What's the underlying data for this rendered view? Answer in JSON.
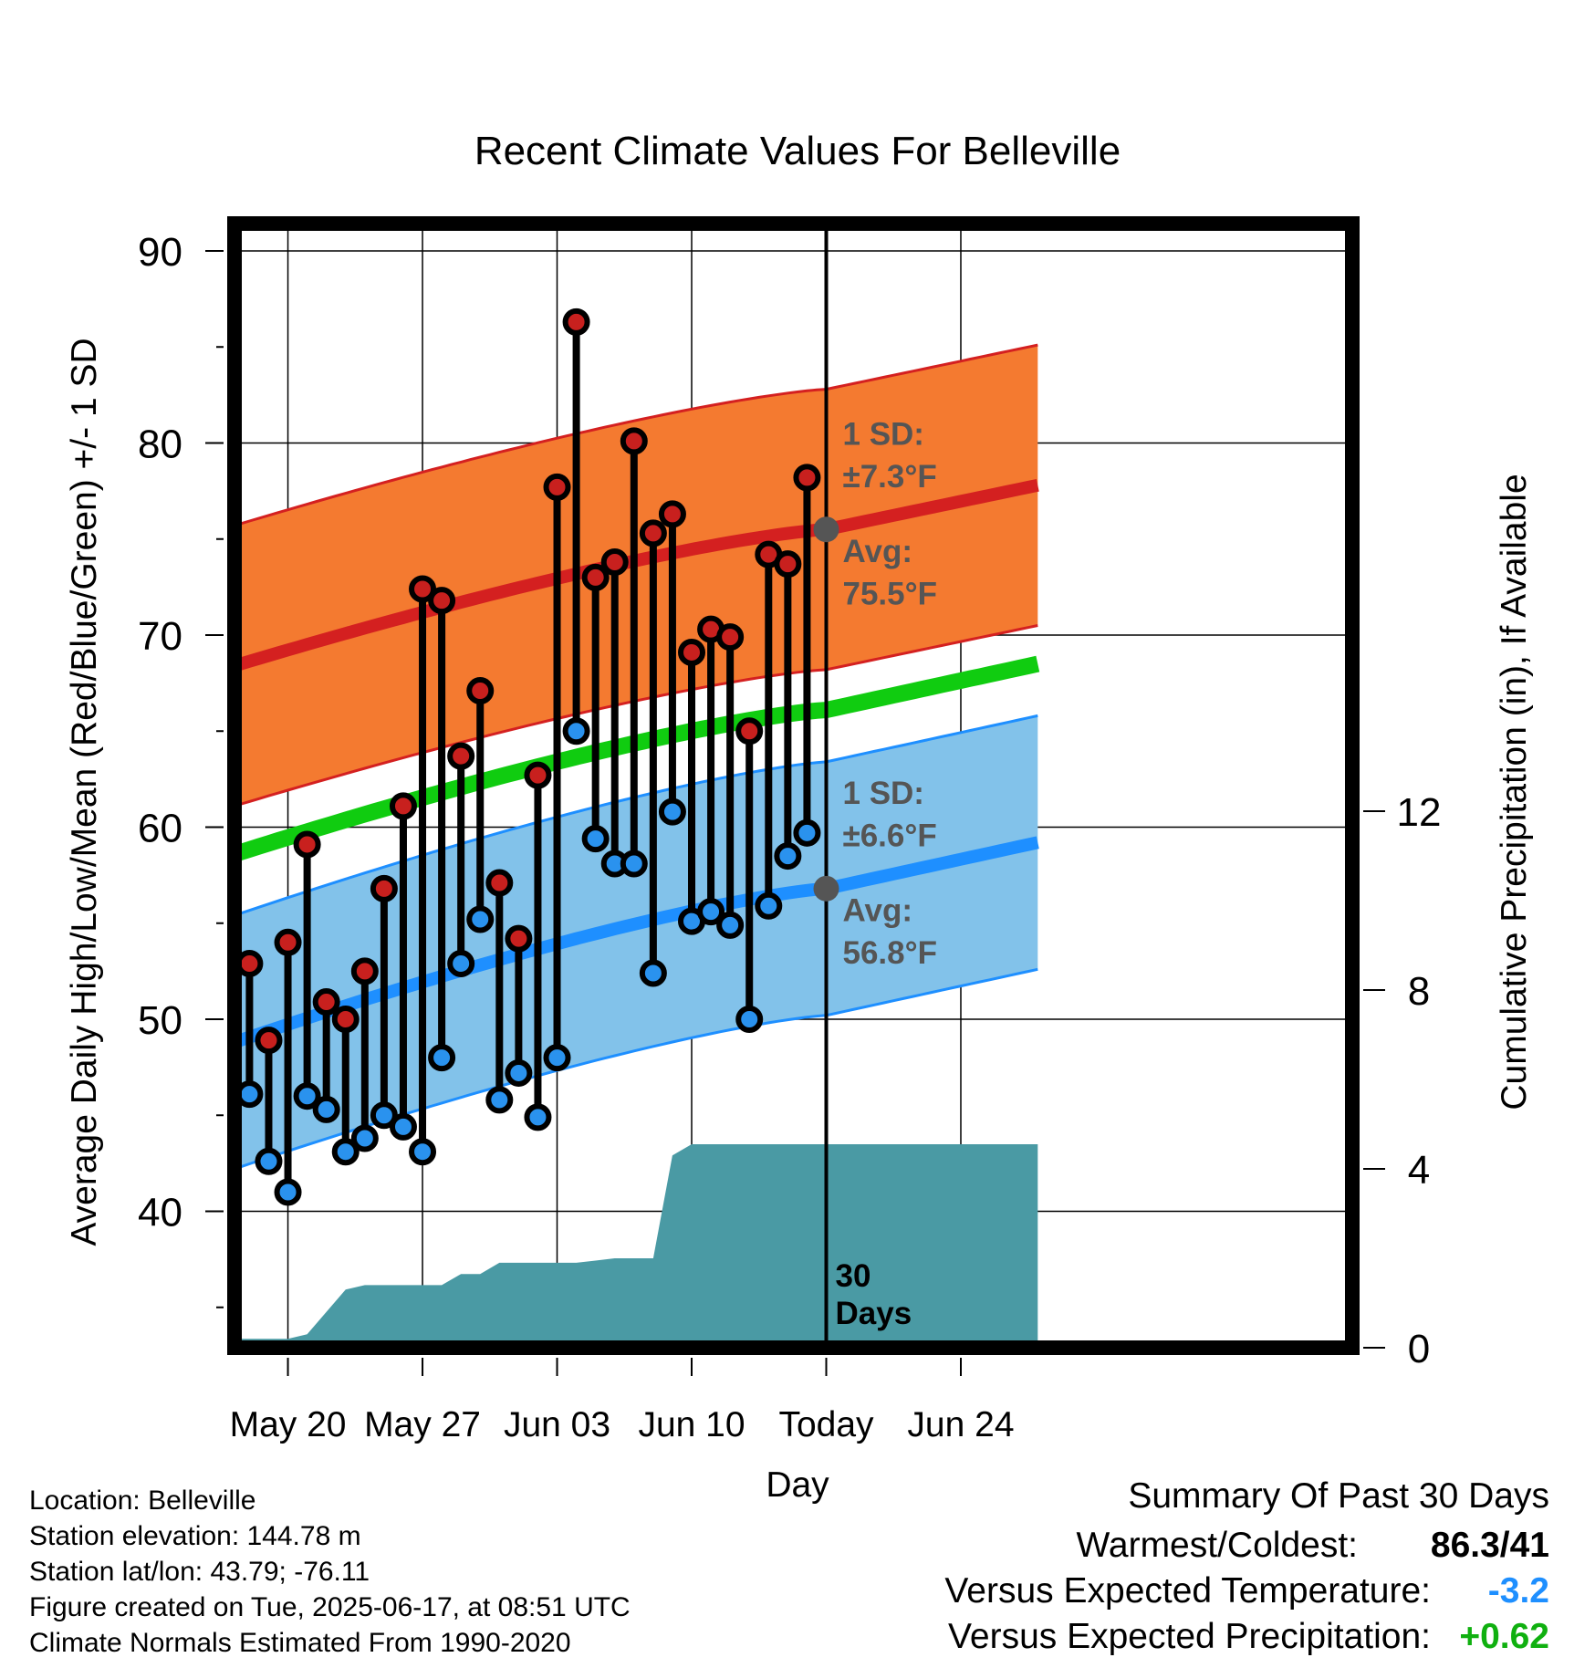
{
  "chart_data": {
    "type": "line",
    "title": "Recent Climate Values For Belleville",
    "xlabel": "Day",
    "ylabel": "Average Daily High/Low/Mean (Red/Blue/Green) +/- 1 SD",
    "y2label": "Cumulative Precipitation (in), If Available",
    "ylim": [
      33,
      91.5
    ],
    "y2lim": [
      0,
      20
    ],
    "yticks": [
      40,
      50,
      60,
      70,
      80,
      90
    ],
    "y2ticks": [
      0,
      4,
      8,
      12
    ],
    "xrange_days": [
      -36,
      11
    ],
    "xticks": [
      {
        "day": -28,
        "label": "May 20"
      },
      {
        "day": -21,
        "label": "May 27"
      },
      {
        "day": -14,
        "label": "Jun 03"
      },
      {
        "day": -7,
        "label": "Jun 10"
      },
      {
        "day": 0,
        "label": "Today"
      },
      {
        "day": 7,
        "label": "Jun 24"
      }
    ],
    "normals": {
      "high_avg": {
        "start": 66.8,
        "today": 75.5,
        "end": 77.8
      },
      "high_sd": 7.3,
      "mean_avg": {
        "start": 56.9,
        "today": 66.1,
        "end": 68.5
      },
      "low_avg": {
        "start": 47.0,
        "today": 56.8,
        "end": 59.2
      },
      "low_sd": 6.6
    },
    "annotations": {
      "high_sd_label": "1 SD:",
      "high_sd_value": "±7.3°F",
      "high_avg_label": "Avg:",
      "high_avg_value": "75.5°F",
      "low_sd_label": "1 SD:",
      "low_sd_value": "±6.6°F",
      "low_avg_label": "Avg:",
      "low_avg_value": "56.8°F",
      "days_line1": "30",
      "days_line2": "Days"
    },
    "daily": [
      {
        "day": -30,
        "high": 52.9,
        "low": 46.1
      },
      {
        "day": -29,
        "high": 48.9,
        "low": 42.6
      },
      {
        "day": -28,
        "high": 54.0,
        "low": 41.0
      },
      {
        "day": -27,
        "high": 59.1,
        "low": 46.0
      },
      {
        "day": -26,
        "high": 50.9,
        "low": 45.3
      },
      {
        "day": -25,
        "high": 50.0,
        "low": 43.1
      },
      {
        "day": -24,
        "high": 52.5,
        "low": 43.8
      },
      {
        "day": -23,
        "high": 56.8,
        "low": 45.0
      },
      {
        "day": -22,
        "high": 61.1,
        "low": 44.4
      },
      {
        "day": -21,
        "high": 72.4,
        "low": 43.1
      },
      {
        "day": -20,
        "high": 71.8,
        "low": 48.0
      },
      {
        "day": -19,
        "high": 63.7,
        "low": 52.9
      },
      {
        "day": -18,
        "high": 67.1,
        "low": 55.2
      },
      {
        "day": -17,
        "high": 57.1,
        "low": 45.8
      },
      {
        "day": -16,
        "high": 54.2,
        "low": 47.2
      },
      {
        "day": -15,
        "high": 62.7,
        "low": 44.9
      },
      {
        "day": -14,
        "high": 77.7,
        "low": 48.0
      },
      {
        "day": -13,
        "high": 86.3,
        "low": 65.0
      },
      {
        "day": -12,
        "high": 73.0,
        "low": 59.4
      },
      {
        "day": -11,
        "high": 73.8,
        "low": 58.1
      },
      {
        "day": -10,
        "high": 80.1,
        "low": 58.1
      },
      {
        "day": -9,
        "high": 75.3,
        "low": 52.4
      },
      {
        "day": -8,
        "high": 76.3,
        "low": 60.8
      },
      {
        "day": -7,
        "high": 69.1,
        "low": 55.1
      },
      {
        "day": -6,
        "high": 70.3,
        "low": 55.6
      },
      {
        "day": -5,
        "high": 69.9,
        "low": 54.9
      },
      {
        "day": -4,
        "high": 65.0,
        "low": 50.0
      },
      {
        "day": -3,
        "high": 74.2,
        "low": 55.9
      },
      {
        "day": -2,
        "high": 73.7,
        "low": 58.5
      },
      {
        "day": -1,
        "high": 78.2,
        "low": 59.7
      }
    ],
    "precip_cumulative": [
      {
        "day": -31,
        "in": 0.0
      },
      {
        "day": -30.5,
        "in": 0.2
      },
      {
        "day": -28,
        "in": 0.2
      },
      {
        "day": -27,
        "in": 0.3
      },
      {
        "day": -25,
        "in": 1.3
      },
      {
        "day": -24,
        "in": 1.4
      },
      {
        "day": -20,
        "in": 1.4
      },
      {
        "day": -19,
        "in": 1.65
      },
      {
        "day": -18,
        "in": 1.65
      },
      {
        "day": -17,
        "in": 1.9
      },
      {
        "day": -13,
        "in": 1.9
      },
      {
        "day": -12,
        "in": 1.95
      },
      {
        "day": -11,
        "in": 2.0
      },
      {
        "day": -9,
        "in": 2.0
      },
      {
        "day": -8,
        "in": 4.3
      },
      {
        "day": -7,
        "in": 4.55
      },
      {
        "day": 11,
        "in": 4.55
      }
    ]
  },
  "footer": {
    "location": "Location: Belleville",
    "elevation": "Station elevation: 144.78 m",
    "latlon": "Station lat/lon: 43.79; -76.11",
    "created": "Figure created on Tue, 2025-06-17, at 08:51 UTC",
    "normals": "Climate Normals Estimated From 1990-2020"
  },
  "summary": {
    "title": "Summary Of Past 30 Days",
    "warmest_label": "Warmest/Coldest:",
    "warmest_value": "86.3/41",
    "temp_label": "Versus Expected Temperature:",
    "temp_value": "-3.2",
    "precip_label": "Versus Expected Precipitation:",
    "precip_value": "+0.62"
  },
  "colors": {
    "high_band": "#f47a30",
    "high_line": "#d42020",
    "mean_line": "#10cc10",
    "low_band": "#82c2ea",
    "low_line": "#1e8fff",
    "precip": "#4a9aa4",
    "high_dot": "#c8201e",
    "low_dot": "#2a92ee",
    "today_dot": "#555555",
    "annotation_text": "#555555",
    "temp_value": "#1e8fff",
    "precip_value": "#10b010"
  }
}
